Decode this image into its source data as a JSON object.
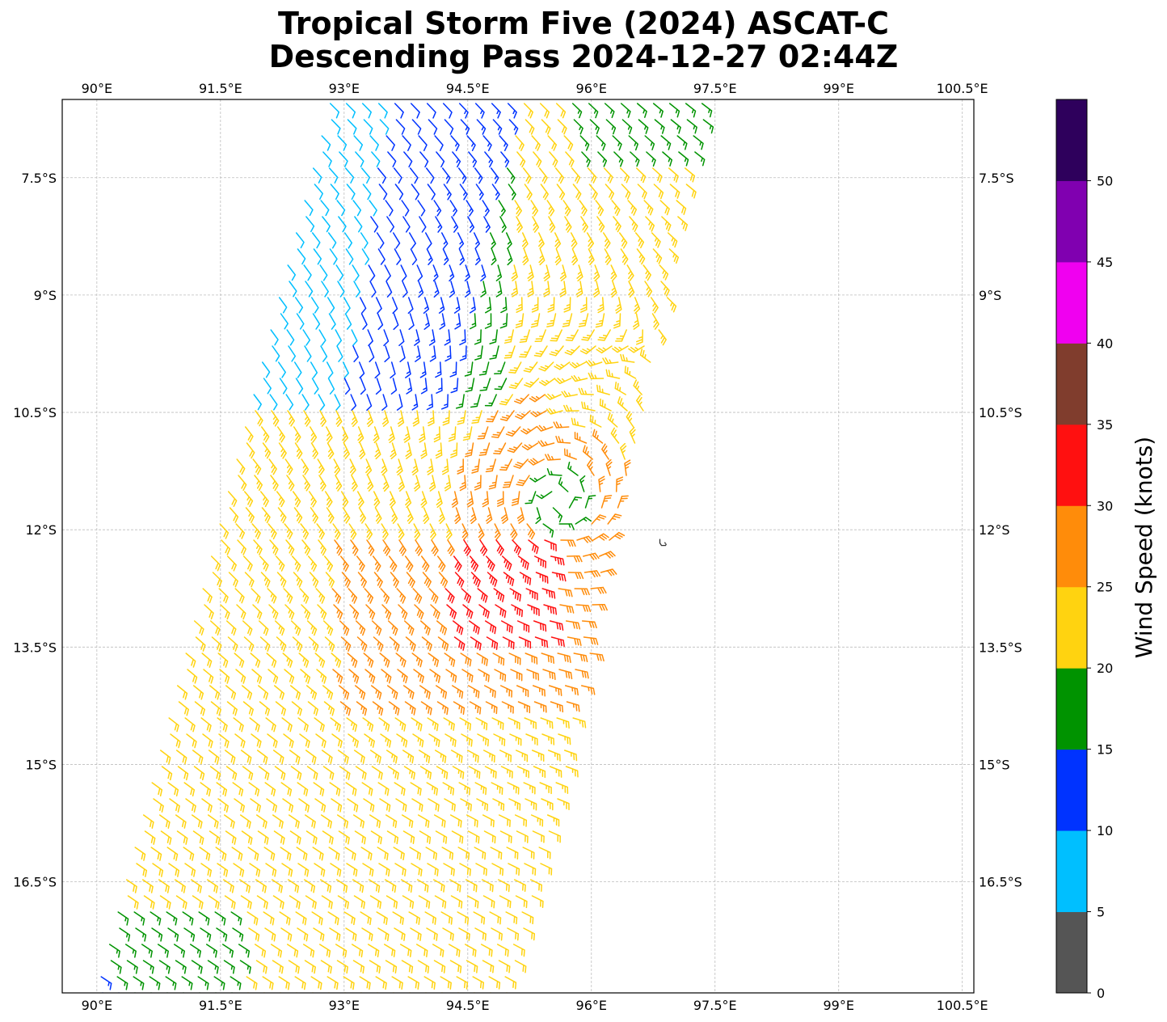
{
  "title": {
    "line1": "Tropical Storm Five (2024) ASCAT-C",
    "line2": "Descending Pass 2024-12-27 02:44Z"
  },
  "map": {
    "lon_range": [
      89.58,
      100.64
    ],
    "lat_range": [
      -17.92,
      -6.5
    ],
    "lon_ticks": [
      {
        "value": 90.0,
        "label": "90°E"
      },
      {
        "value": 91.5,
        "label": "91.5°E"
      },
      {
        "value": 93.0,
        "label": "93°E"
      },
      {
        "value": 94.5,
        "label": "94.5°E"
      },
      {
        "value": 96.0,
        "label": "96°E"
      },
      {
        "value": 97.5,
        "label": "97.5°E"
      },
      {
        "value": 99.0,
        "label": "99°E"
      },
      {
        "value": 100.5,
        "label": "100.5°E"
      }
    ],
    "lat_ticks": [
      {
        "value": -7.5,
        "label": "7.5°S"
      },
      {
        "value": -9.0,
        "label": "9°S"
      },
      {
        "value": -10.5,
        "label": "10.5°S"
      },
      {
        "value": -12.0,
        "label": "12°S"
      },
      {
        "value": -13.5,
        "label": "13.5°S"
      },
      {
        "value": -15.0,
        "label": "15°S"
      },
      {
        "value": -16.5,
        "label": "16.5°S"
      }
    ],
    "grid": true,
    "storm_center": {
      "lon": 95.6,
      "lat": -11.65
    },
    "island": {
      "lon": 96.87,
      "lat": -12.17
    }
  },
  "colorbar": {
    "label": "Wind Speed (knots)",
    "bins": [
      {
        "min": 0,
        "max": 5,
        "color": "#555555"
      },
      {
        "min": 5,
        "max": 10,
        "color": "#00BFFF"
      },
      {
        "min": 10,
        "max": 15,
        "color": "#0033FF"
      },
      {
        "min": 15,
        "max": 20,
        "color": "#009300"
      },
      {
        "min": 20,
        "max": 25,
        "color": "#FFD310"
      },
      {
        "min": 25,
        "max": 30,
        "color": "#FF8C0A"
      },
      {
        "min": 30,
        "max": 35,
        "color": "#FF1010"
      },
      {
        "min": 35,
        "max": 40,
        "color": "#803D2D"
      },
      {
        "min": 40,
        "max": 45,
        "color": "#F000F0"
      },
      {
        "min": 45,
        "max": 50,
        "color": "#8000B0"
      },
      {
        "min": 50,
        "max": 55,
        "color": "#2E005C"
      }
    ],
    "tick_labels": [
      "0",
      "5",
      "10",
      "15",
      "20",
      "25",
      "30",
      "35",
      "40",
      "45",
      "50"
    ]
  }
}
